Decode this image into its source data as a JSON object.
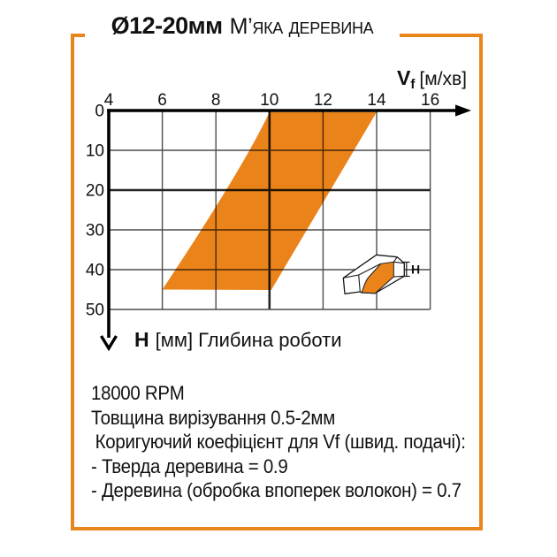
{
  "title": {
    "diameter": "Ø12-20мм",
    "material": "М’яка деревина"
  },
  "colors": {
    "accent_orange": "#EA8319",
    "frame_orange": "#E8861E",
    "grid": "#4D4D4D",
    "axis": "#000000"
  },
  "chart_data": {
    "type": "area",
    "title": "Ø12-20мм М’яка деревина",
    "grid": true,
    "legend": false,
    "x_axis": {
      "symbol": "V",
      "symbol_sub": "f",
      "units": "[м/хв]",
      "position": "top",
      "range": [
        4,
        16
      ],
      "ticks": [
        "4",
        "6",
        "8",
        "10",
        "12",
        "14",
        "16"
      ]
    },
    "y_axis": {
      "symbol": "H",
      "units": "[мм]",
      "caption": "Глибина роботи",
      "direction": "down",
      "range": [
        0,
        50
      ],
      "ticks": [
        "0",
        "10",
        "20",
        "30",
        "40",
        "50"
      ]
    },
    "series": [
      {
        "name": "recommended-feed-band",
        "color": "#EA8319",
        "points_vf_h": [
          [
            10,
            0
          ],
          [
            14,
            0
          ],
          [
            10,
            45
          ],
          [
            6,
            45
          ]
        ],
        "at_depth_0mm": {
          "vf_min": 10,
          "vf_max": 14
        },
        "at_depth_45mm": {
          "vf_min": 6,
          "vf_max": 10
        }
      }
    ]
  },
  "icon": {
    "h_label": "H"
  },
  "notes": {
    "lines": [
      "18000 RPM",
      "Товщина вирізування 0.5-2мм",
      "Коригуючий коефіцієнт для Vf (швид. подачі):",
      "- Тверда деревина = 0.9",
      "- Деревина (обробка впоперек волокон) = 0.7"
    ]
  }
}
